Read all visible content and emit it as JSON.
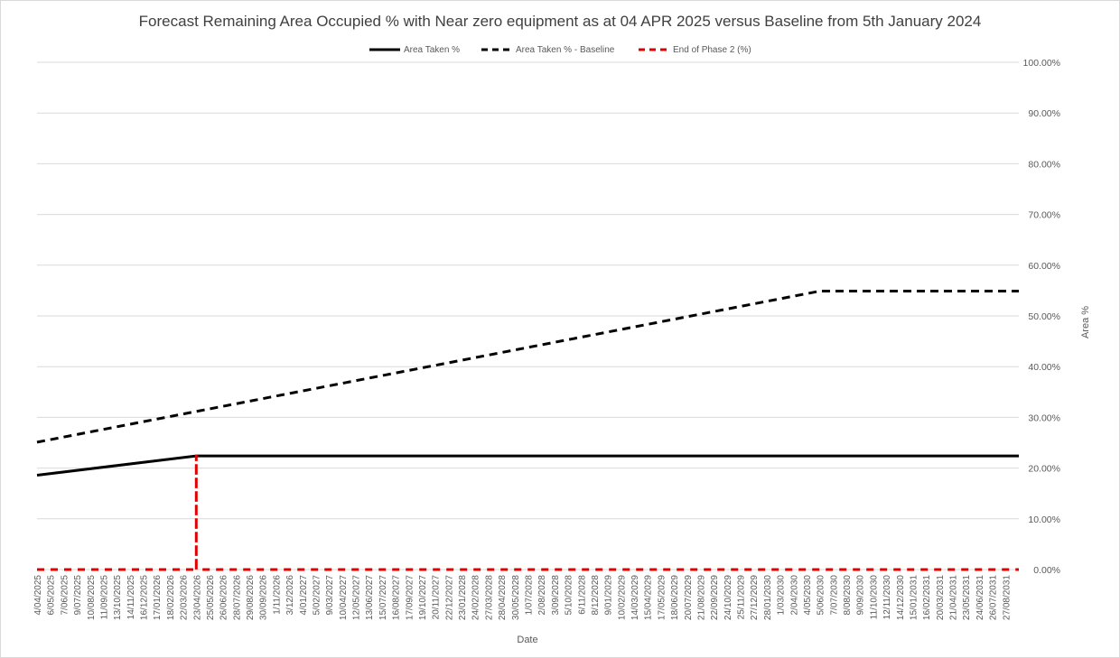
{
  "chart_data": {
    "type": "line",
    "title": "Forecast Remaining Area Occupied % with Near zero equipment as at 04 APR 2025 versus Baseline from 5th January 2024",
    "xlabel": "Date",
    "ylabel": "Area %",
    "ylim": [
      0,
      100
    ],
    "y_axis_position": "right",
    "y_ticks": [
      "0.00%",
      "10.00%",
      "20.00%",
      "30.00%",
      "40.00%",
      "50.00%",
      "60.00%",
      "70.00%",
      "80.00%",
      "90.00%",
      "100.00%"
    ],
    "grid": true,
    "legend_position": "top",
    "categories": [
      "4/04/2025",
      "6/05/2025",
      "7/06/2025",
      "9/07/2025",
      "10/08/2025",
      "11/09/2025",
      "13/10/2025",
      "14/11/2025",
      "16/12/2025",
      "17/01/2026",
      "18/02/2026",
      "22/03/2026",
      "23/04/2026",
      "25/05/2026",
      "26/06/2026",
      "28/07/2026",
      "29/08/2026",
      "30/09/2026",
      "1/11/2026",
      "3/12/2026",
      "4/01/2027",
      "5/02/2027",
      "9/03/2027",
      "10/04/2027",
      "12/05/2027",
      "13/06/2027",
      "15/07/2027",
      "16/08/2027",
      "17/09/2027",
      "19/10/2027",
      "20/11/2027",
      "22/12/2027",
      "23/01/2028",
      "24/02/2028",
      "27/03/2028",
      "28/04/2028",
      "30/05/2028",
      "1/07/2028",
      "2/08/2028",
      "3/09/2028",
      "5/10/2028",
      "6/11/2028",
      "8/12/2028",
      "9/01/2029",
      "10/02/2029",
      "14/03/2029",
      "15/04/2029",
      "17/05/2029",
      "18/06/2029",
      "20/07/2029",
      "21/08/2029",
      "22/09/2029",
      "24/10/2029",
      "25/11/2029",
      "27/12/2029",
      "28/01/2030",
      "1/03/2030",
      "2/04/2030",
      "4/05/2030",
      "5/06/2030",
      "7/07/2030",
      "8/08/2030",
      "9/09/2030",
      "11/10/2030",
      "12/11/2030",
      "14/12/2030",
      "15/01/2031",
      "16/02/2031",
      "20/03/2031",
      "21/04/2031",
      "23/05/2031",
      "24/06/2031",
      "26/07/2031",
      "27/08/2031"
    ],
    "series": [
      {
        "name": "Area Taken %",
        "color": "#000000",
        "style": "solid",
        "points": [
          [
            0,
            18.6
          ],
          [
            12,
            22.4
          ],
          [
            74,
            22.4
          ]
        ]
      },
      {
        "name": "Area Taken % - Baseline",
        "color": "#000000",
        "style": "dashed",
        "points": [
          [
            0,
            25.1
          ],
          [
            59,
            54.9
          ],
          [
            74,
            54.9
          ]
        ]
      },
      {
        "name": "End of Phase 2 (%)",
        "color": "#e00000",
        "style": "dashed",
        "points": [
          [
            0,
            0
          ],
          [
            12,
            0
          ],
          [
            12,
            22.4
          ],
          [
            12,
            0
          ],
          [
            74,
            0
          ]
        ]
      }
    ]
  }
}
